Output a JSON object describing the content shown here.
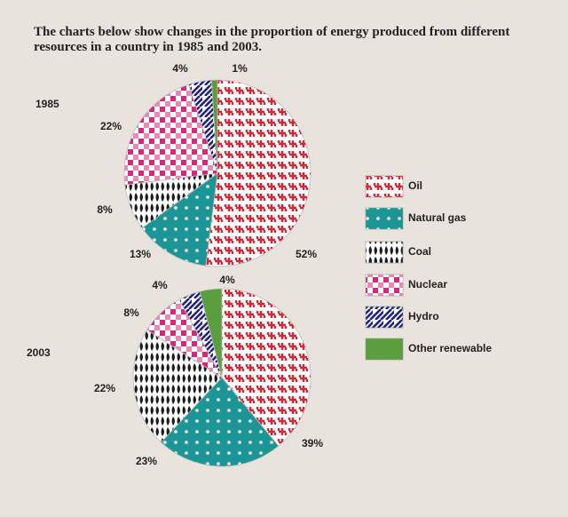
{
  "chart_data": [
    {
      "type": "pie",
      "title": "The charts below show changes in the proportion of energy produced from different resources in a country in 1985 and 2003.",
      "label": "1985",
      "categories": [
        "Oil",
        "Natural gas",
        "Coal",
        "Nuclear",
        "Hydro",
        "Other renewable"
      ],
      "values": [
        52,
        13,
        8,
        22,
        4,
        1
      ],
      "value_labels": [
        "52%",
        "13%",
        "8%",
        "22%",
        "4%",
        "1%"
      ],
      "colors": [
        "#d92631",
        "#1b9595",
        "#1e1e1e",
        "#d4287e",
        "#23237e",
        "#5b9e3f"
      ]
    },
    {
      "type": "pie",
      "label": "2003",
      "categories": [
        "Oil",
        "Natural gas",
        "Coal",
        "Nuclear",
        "Hydro",
        "Other renewable"
      ],
      "values": [
        39,
        23,
        22,
        8,
        4,
        4
      ],
      "value_labels": [
        "39%",
        "23%",
        "22%",
        "8%",
        "4%",
        "4%"
      ],
      "colors": [
        "#d92631",
        "#1b9595",
        "#1e1e1e",
        "#d4287e",
        "#23237e",
        "#5b9e3f"
      ]
    }
  ]
}
